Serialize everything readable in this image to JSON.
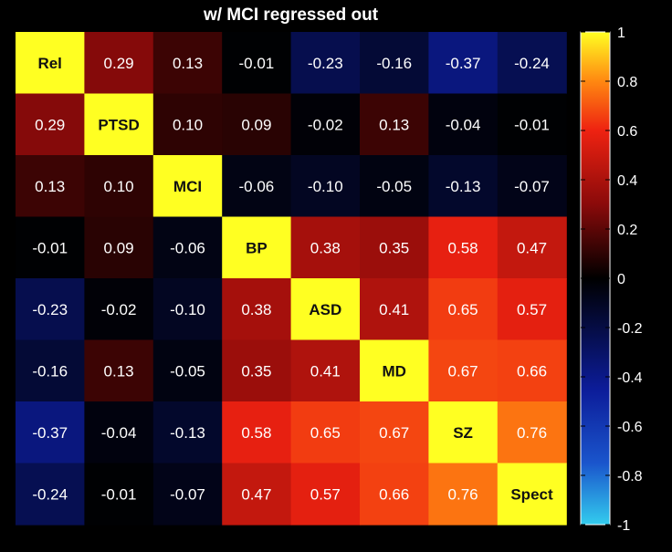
{
  "chart_data": {
    "type": "heatmap",
    "title": "w/ MCI regressed out",
    "labels": [
      "Rel",
      "PTSD",
      "MCI",
      "BP",
      "ASD",
      "MD",
      "SZ",
      "Spect"
    ],
    "matrix": [
      [
        1,
        0.29,
        0.13,
        -0.01,
        -0.23,
        -0.16,
        -0.37,
        -0.24
      ],
      [
        0.29,
        1,
        0.1,
        0.09,
        -0.02,
        0.13,
        -0.04,
        -0.01
      ],
      [
        0.13,
        0.1,
        1,
        -0.06,
        -0.1,
        -0.05,
        -0.13,
        -0.07
      ],
      [
        -0.01,
        0.09,
        -0.06,
        1,
        0.38,
        0.35,
        0.58,
        0.47
      ],
      [
        -0.23,
        -0.02,
        -0.1,
        0.38,
        1,
        0.41,
        0.65,
        0.57
      ],
      [
        -0.16,
        0.13,
        -0.05,
        0.35,
        0.41,
        1,
        0.67,
        0.66
      ],
      [
        -0.37,
        -0.04,
        -0.13,
        0.58,
        0.65,
        0.67,
        1,
        0.76
      ],
      [
        -0.24,
        -0.01,
        -0.07,
        0.47,
        0.57,
        0.66,
        0.76,
        1
      ]
    ],
    "cell_text": [
      [
        "Rel",
        "0.29",
        "0.13",
        "-0.01",
        "-0.23",
        "-0.16",
        "-0.37",
        "-0.24"
      ],
      [
        "0.29",
        "PTSD",
        "0.10",
        "0.09",
        "-0.02",
        "0.13",
        "-0.04",
        "-0.01"
      ],
      [
        "0.13",
        "0.10",
        "MCI",
        "-0.06",
        "-0.10",
        "-0.05",
        "-0.13",
        "-0.07"
      ],
      [
        "-0.01",
        "0.09",
        "-0.06",
        "BP",
        "0.38",
        "0.35",
        "0.58",
        "0.47"
      ],
      [
        "-0.23",
        "-0.02",
        "-0.10",
        "0.38",
        "ASD",
        "0.41",
        "0.65",
        "0.57"
      ],
      [
        "-0.16",
        "0.13",
        "-0.05",
        "0.35",
        "0.41",
        "MD",
        "0.67",
        "0.66"
      ],
      [
        "-0.37",
        "-0.04",
        "-0.13",
        "0.58",
        "0.65",
        "0.67",
        "SZ",
        "0.76"
      ],
      [
        "-0.24",
        "-0.01",
        "-0.07",
        "0.47",
        "0.57",
        "0.66",
        "0.76",
        "Spect"
      ]
    ],
    "colorbar": {
      "range": [
        -1,
        1
      ],
      "ticks": [
        1,
        0.8,
        0.6,
        0.4,
        0.2,
        0,
        -0.2,
        -0.4,
        -0.6,
        -0.8,
        -1
      ],
      "tick_labels": [
        "1",
        "0.8",
        "0.6",
        "0.4",
        "0.2",
        "0",
        "-0.2",
        "-0.4",
        "-0.6",
        "-0.8",
        "-1"
      ]
    },
    "colormap_stops": [
      {
        "v": -1,
        "color": "#33ccee"
      },
      {
        "v": -0.75,
        "color": "#1a55cc"
      },
      {
        "v": -0.45,
        "color": "#0c1c99"
      },
      {
        "v": 0,
        "color": "#000000"
      },
      {
        "v": 0.3,
        "color": "#8a0a0a"
      },
      {
        "v": 0.6,
        "color": "#ee2211"
      },
      {
        "v": 0.8,
        "color": "#ff8811"
      },
      {
        "v": 1,
        "color": "#ffff22"
      }
    ],
    "dark_text_color": "#111111",
    "light_text_color": "#ffffff"
  }
}
